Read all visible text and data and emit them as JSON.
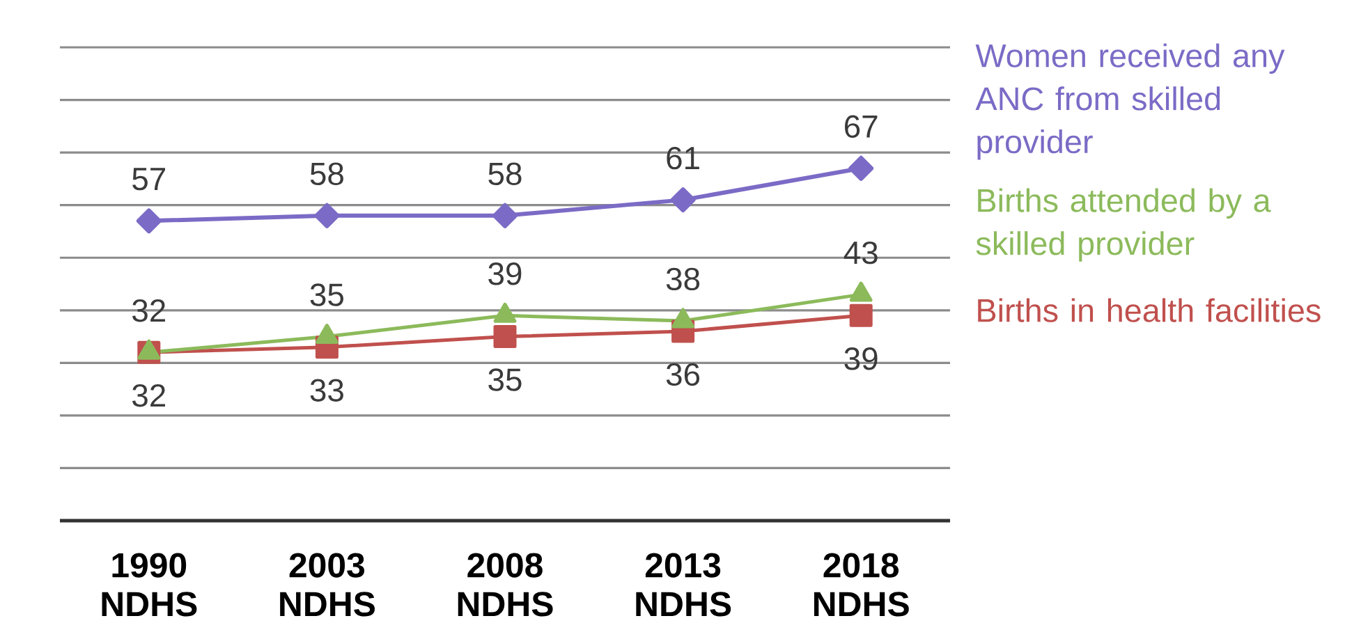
{
  "chart_data": {
    "type": "line",
    "categories": [
      "1990 NDHS",
      "2003 NDHS",
      "2008 NDHS",
      "2013 NDHS",
      "2018 NDHS"
    ],
    "series": [
      {
        "name": "Women received any ANC from skilled provider",
        "color": "#7b6bc6",
        "marker": "diamond",
        "values": [
          57,
          58,
          58,
          61,
          67
        ]
      },
      {
        "name": "Births attended by a skilled provider",
        "color": "#8cba5b",
        "marker": "triangle",
        "values": [
          32,
          35,
          39,
          38,
          43
        ]
      },
      {
        "name": "Births in health facilities",
        "color": "#c0504d",
        "marker": "square",
        "values": [
          32,
          33,
          35,
          36,
          39
        ]
      }
    ],
    "ylim": [
      0,
      90
    ],
    "yticks": [
      {
        "value": 0,
        "label": null
      },
      {
        "value": 10,
        "label": null
      },
      {
        "value": 20,
        "label": null
      },
      {
        "value": 30,
        "label": null
      },
      {
        "value": 40,
        "label": null
      },
      {
        "value": 50,
        "label": null
      },
      {
        "value": 60,
        "label": null
      },
      {
        "value": 70,
        "label": null
      },
      {
        "value": 80,
        "label": null
      },
      {
        "value": 90,
        "label": null
      }
    ],
    "grid": "y",
    "tick_labels": "x",
    "data_labels": true
  }
}
